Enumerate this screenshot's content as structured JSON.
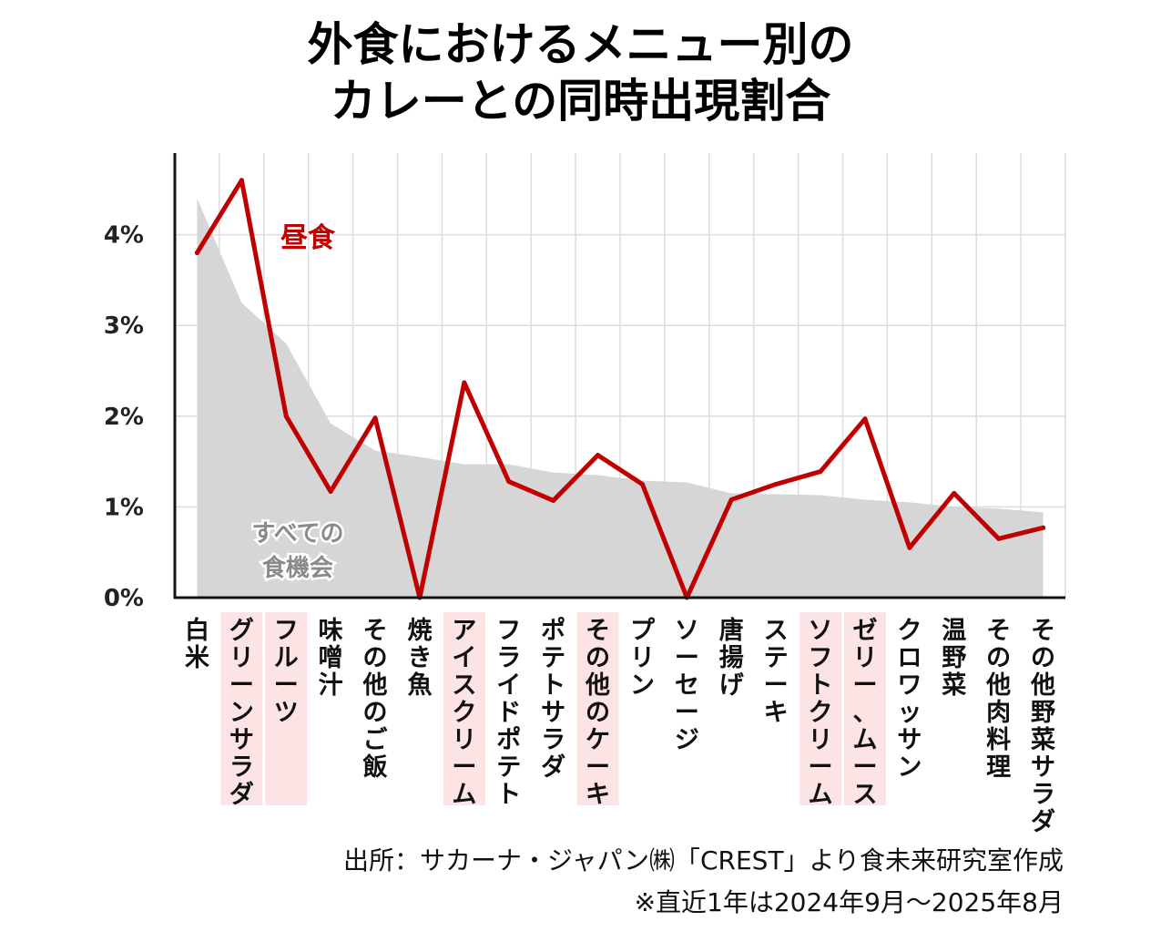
{
  "title": {
    "line1": "外食におけるメニュー別の",
    "line2": "カレーとの同時出現割合"
  },
  "source": {
    "line1": "出所：サカーナ・ジャパン㈱「CREST」より食未来研究室作成",
    "line2": "※直近1年は2024年9月～2025年8月"
  },
  "colors": {
    "lunch_line": "#c00000",
    "all_area": "#d6d6d6",
    "highlight": "#fde4e4",
    "grid": "#dcdcdc"
  },
  "chart_data": {
    "type": "line",
    "categories": [
      "白米",
      "グリーンサラダ",
      "フルーツ",
      "味噌汁",
      "その他のご飯",
      "焼き魚",
      "アイスクリーム",
      "フライドポテト",
      "ポテトサラダ",
      "その他のケーキ",
      "プリン",
      "ソーセージ",
      "唐揚げ",
      "ステーキ",
      "ソフトクリーム",
      "ゼリー、ムース",
      "クロワッサン",
      "温野菜",
      "その他肉料理",
      "その他野菜サラダ"
    ],
    "highlighted_categories": [
      "グリーンサラダ",
      "フルーツ",
      "アイスクリーム",
      "その他のケーキ",
      "ソフトクリーム",
      "ゼリー、ムース"
    ],
    "yticks": [
      "0%",
      "1%",
      "2%",
      "3%",
      "4%"
    ],
    "ylim": [
      0,
      4.9
    ],
    "grid": true,
    "series": [
      {
        "name": "昼食",
        "type": "line",
        "values": [
          3.8,
          4.6,
          2.0,
          1.17,
          1.98,
          0.0,
          2.37,
          1.28,
          1.07,
          1.57,
          1.25,
          0.0,
          1.08,
          1.25,
          1.39,
          1.97,
          0.55,
          1.15,
          0.65,
          0.77
        ]
      },
      {
        "name": "すべての食機会",
        "label_lines": [
          "すべての",
          "食機会"
        ],
        "type": "area",
        "values": [
          4.4,
          3.25,
          2.8,
          1.92,
          1.62,
          1.55,
          1.47,
          1.47,
          1.38,
          1.35,
          1.29,
          1.27,
          1.15,
          1.14,
          1.13,
          1.08,
          1.05,
          1.0,
          0.98,
          0.94
        ]
      }
    ]
  }
}
